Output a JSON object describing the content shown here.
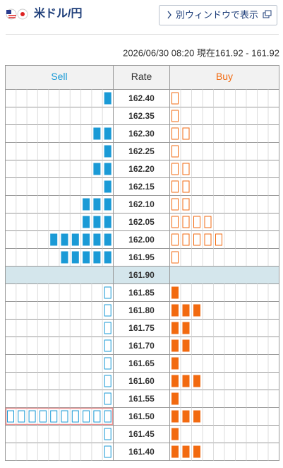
{
  "header": {
    "title": "米ドル/円",
    "button": "別ウィンドウで表示"
  },
  "timestamp": "2026/06/30 08:20 現在161.92 - 161.92",
  "table": {
    "columns": [
      "Sell",
      "Rate",
      "Buy"
    ],
    "rows_above": [
      {
        "rate": "162.40",
        "sell": 1,
        "buy": 1
      },
      {
        "rate": "162.35",
        "sell": 0,
        "buy": 1
      },
      {
        "rate": "162.30",
        "sell": 2,
        "buy": 2
      },
      {
        "rate": "162.25",
        "sell": 1,
        "buy": 1
      },
      {
        "rate": "162.20",
        "sell": 2,
        "buy": 2
      },
      {
        "rate": "162.15",
        "sell": 1,
        "buy": 2
      },
      {
        "rate": "162.10",
        "sell": 3,
        "buy": 2
      },
      {
        "rate": "162.05",
        "sell": 3,
        "buy": 4
      },
      {
        "rate": "162.00",
        "sell": 6,
        "buy": 5
      },
      {
        "rate": "161.95",
        "sell": 5,
        "buy": 1
      }
    ],
    "current_row": {
      "rate": "161.90"
    },
    "rows_below": [
      {
        "rate": "161.85",
        "sell": 1,
        "buy": 1
      },
      {
        "rate": "161.80",
        "sell": 1,
        "buy": 3
      },
      {
        "rate": "161.75",
        "sell": 1,
        "buy": 2
      },
      {
        "rate": "161.70",
        "sell": 1,
        "buy": 2
      },
      {
        "rate": "161.65",
        "sell": 1,
        "buy": 1
      },
      {
        "rate": "161.60",
        "sell": 1,
        "buy": 3
      },
      {
        "rate": "161.55",
        "sell": 1,
        "buy": 1
      },
      {
        "rate": "161.50",
        "sell": 10,
        "buy": 3,
        "highlight": true
      },
      {
        "rate": "161.45",
        "sell": 1,
        "buy": 1
      },
      {
        "rate": "161.40",
        "sell": 1,
        "buy": 3
      }
    ]
  }
}
